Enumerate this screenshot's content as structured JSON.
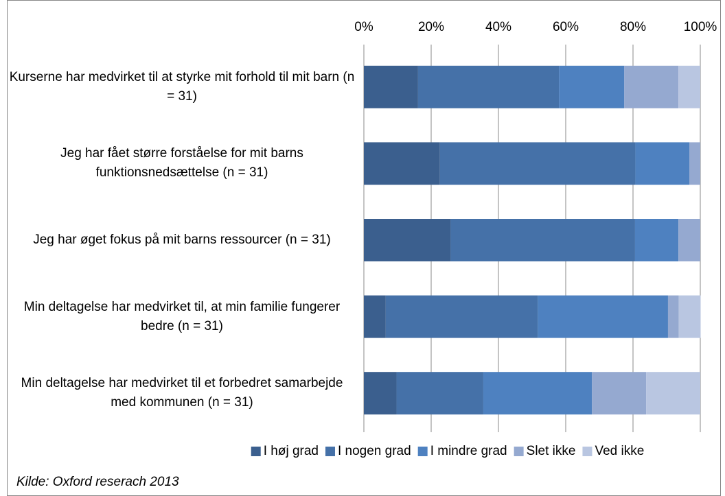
{
  "chart_data": {
    "type": "stacked_bar_horizontal",
    "categories": [
      "Kurserne har medvirket til at styrke mit forhold til mit barn (n = 31)",
      "Jeg har fået større forståelse for mit barns funktionsnedsættelse (n = 31)",
      "Jeg har øget fokus på mit barns ressourcer (n = 31)",
      "Min deltagelse har medvirket til, at min familie fungerer bedre (n = 31)",
      "Min deltagelse har medvirket til et forbedret samarbejde med kommunen (n = 31)"
    ],
    "series": [
      {
        "name": "I høj grad",
        "color": "#3b5f8e",
        "values": [
          16.1,
          22.6,
          25.8,
          6.5,
          9.7
        ]
      },
      {
        "name": "I nogen grad",
        "color": "#4571a8",
        "values": [
          41.9,
          58.1,
          54.8,
          45.2,
          25.8
        ]
      },
      {
        "name": "I mindre grad",
        "color": "#4e81c0",
        "values": [
          19.4,
          16.1,
          12.9,
          38.7,
          32.3
        ]
      },
      {
        "name": "Slet ikke",
        "color": "#95a9d0",
        "values": [
          16.1,
          3.2,
          6.5,
          3.2,
          16.1
        ]
      },
      {
        "name": "Ved ikke",
        "color": "#b9c6e1",
        "values": [
          6.5,
          0,
          0,
          6.5,
          16.1
        ]
      }
    ],
    "xlim": [
      0,
      100
    ],
    "xticks": [
      {
        "value": 0,
        "label": "0%"
      },
      {
        "value": 20,
        "label": "20%"
      },
      {
        "value": 40,
        "label": "40%"
      },
      {
        "value": 60,
        "label": "60%"
      },
      {
        "value": 80,
        "label": "80%"
      },
      {
        "value": 100,
        "label": "100%"
      }
    ],
    "grid": true,
    "legend": "bottom",
    "source": "Kilde: Oxford reserach 2013"
  }
}
